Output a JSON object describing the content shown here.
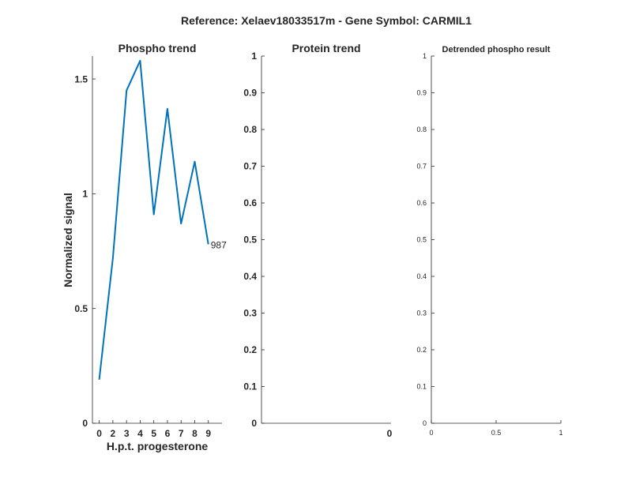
{
  "figure_title": "Reference:  Xelaev18033517m - Gene Symbol:  CARMIL1",
  "chart_data": [
    {
      "type": "line",
      "title": "Phospho trend",
      "xlabel": "H.p.t. progesterone",
      "ylabel": "Normalized signal",
      "categories": [
        "0",
        "2",
        "3",
        "4",
        "5",
        "6",
        "7",
        "8",
        "9"
      ],
      "xlim": [
        -0.5,
        9
      ],
      "ylim": [
        0,
        1.6
      ],
      "yticks": [
        0,
        0.5,
        1,
        1.5
      ],
      "ytick_labels": [
        "0",
        "0.5",
        "1",
        "1.5"
      ],
      "series": [
        {
          "values": [
            0.19,
            0.72,
            1.45,
            1.58,
            0.91,
            1.37,
            0.87,
            1.14,
            0.78
          ],
          "color": "#0072bd",
          "end_label": "987"
        }
      ],
      "grid": false
    },
    {
      "type": "line",
      "title": "Protein trend",
      "xlabel": "",
      "ylabel": "",
      "xticks": [
        0
      ],
      "xtick_labels": [
        "0"
      ],
      "ylim": [
        0,
        1
      ],
      "yticks": [
        0,
        0.1,
        0.2,
        0.3,
        0.4,
        0.5,
        0.6,
        0.7,
        0.8,
        0.9,
        1
      ],
      "ytick_labels": [
        "0",
        "0.1",
        "0.2",
        "0.3",
        "0.4",
        "0.5",
        "0.6",
        "0.7",
        "0.8",
        "0.9",
        "1"
      ],
      "series": [],
      "grid": false
    },
    {
      "type": "line",
      "title": "Detrended phospho result",
      "xlabel": "",
      "ylabel": "",
      "xlim": [
        0,
        1
      ],
      "xticks": [
        0,
        0.5,
        1
      ],
      "xtick_labels": [
        "0",
        "0.5",
        "1"
      ],
      "ylim": [
        0,
        1
      ],
      "yticks": [
        0,
        0.1,
        0.2,
        0.3,
        0.4,
        0.5,
        0.6,
        0.7,
        0.8,
        0.9,
        1
      ],
      "ytick_labels": [
        "0",
        "0.1",
        "0.2",
        "0.3",
        "0.4",
        "0.5",
        "0.6",
        "0.7",
        "0.8",
        "0.9",
        "1"
      ],
      "series": [],
      "grid": false
    }
  ]
}
